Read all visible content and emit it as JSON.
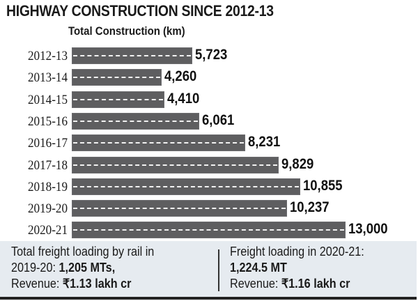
{
  "header": {
    "title": "HIGHWAY CONSTRUCTION SINCE 2012-13",
    "subtitle": "Total Construction (km)"
  },
  "colors": {
    "bar": "#5e5e60",
    "lane_dash": "#f2f2f2",
    "footer_bg": "#e6ebf0"
  },
  "rows": [
    {
      "label": "2012-13",
      "value_text": "5,723"
    },
    {
      "label": "2013-14",
      "value_text": "4,260"
    },
    {
      "label": "2014-15",
      "value_text": "4,410"
    },
    {
      "label": "2015-16",
      "value_text": "6,061"
    },
    {
      "label": "2016-17",
      "value_text": "8,231"
    },
    {
      "label": "2017-18",
      "value_text": "9,829"
    },
    {
      "label": "2018-19",
      "value_text": "10,855"
    },
    {
      "label": "2019-20",
      "value_text": "10,237"
    },
    {
      "label": "2020-21",
      "value_text": "13,000"
    }
  ],
  "footer": {
    "left": {
      "line1": "Total freight loading by rail in",
      "line2_prefix": "2019-20: ",
      "line2_bold": "1,205 MTs,",
      "line3_prefix": "Revenue: ",
      "line3_bold": "₹1.13 lakh cr"
    },
    "right": {
      "line1": "Freight loading in 2020-21:",
      "line2_bold": "1,224.5 MT",
      "line3_prefix": "Revenue: ",
      "line3_bold": "₹1.16 lakh cr"
    }
  },
  "chart_data": {
    "type": "bar",
    "orientation": "horizontal",
    "title": "HIGHWAY CONSTRUCTION SINCE 2012-13",
    "subtitle": "Total Construction (km)",
    "xlabel": "",
    "ylabel": "",
    "categories": [
      "2012-13",
      "2013-14",
      "2014-15",
      "2015-16",
      "2016-17",
      "2017-18",
      "2018-19",
      "2019-20",
      "2020-21"
    ],
    "values": [
      5723,
      4260,
      4410,
      6061,
      8231,
      9829,
      10855,
      10237,
      13000
    ],
    "units": "km",
    "data_labels": true,
    "grid": false,
    "legend": null,
    "annotations": [
      "Total freight loading by rail in 2019-20: 1,205 MTs, Revenue: ₹1.13 lakh cr",
      "Freight loading in 2020-21: 1,224.5 MT Revenue: ₹1.16 lakh cr"
    ]
  }
}
